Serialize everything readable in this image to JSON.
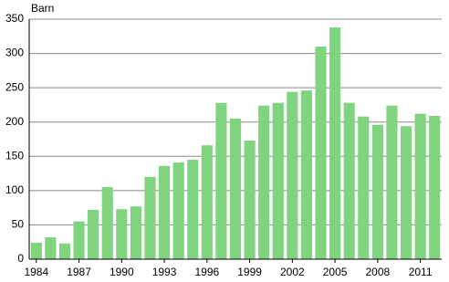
{
  "chart_data": {
    "type": "bar",
    "y_label": "Barn",
    "categories": [
      "1984",
      null,
      null,
      "1987",
      null,
      null,
      "1990",
      null,
      null,
      "1993",
      null,
      null,
      "1996",
      null,
      null,
      "1999",
      null,
      null,
      "2002",
      null,
      null,
      "2005",
      null,
      null,
      "2008",
      null,
      null,
      "2011",
      null
    ],
    "values": [
      24,
      32,
      23,
      55,
      72,
      105,
      73,
      77,
      120,
      136,
      141,
      145,
      166,
      228,
      205,
      173,
      224,
      228,
      244,
      246,
      310,
      338,
      228,
      208,
      196,
      224,
      194,
      212,
      209
    ],
    "color": "#80d480",
    "ylim": [
      0,
      350
    ],
    "yticks": [
      0,
      50,
      100,
      150,
      200,
      250,
      300,
      350
    ],
    "grid": true
  }
}
